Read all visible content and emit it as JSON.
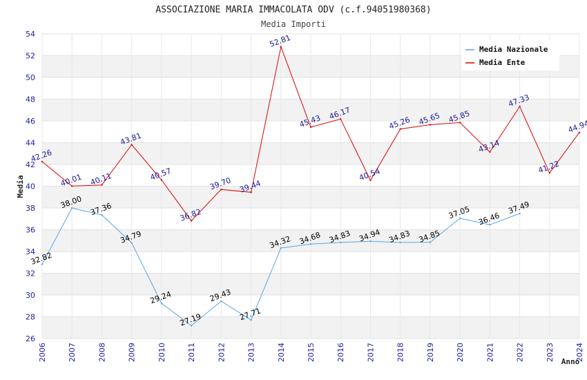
{
  "chart_data": {
    "type": "line",
    "title": "ASSOCIAZIONE MARIA IMMACOLATA ODV (c.f.94051980368)",
    "subtitle": "Media Importi",
    "xlabel": "Anno",
    "ylabel": "Media",
    "ylim": [
      26,
      54
    ],
    "yticks": [
      "26",
      "28",
      "30",
      "32",
      "34",
      "36",
      "38",
      "40",
      "42",
      "44",
      "46",
      "48",
      "50",
      "52",
      "54"
    ],
    "x": [
      "2006",
      "2007",
      "2008",
      "2009",
      "2010",
      "2011",
      "2012",
      "2013",
      "2014",
      "2015",
      "2016",
      "2017",
      "2018",
      "2019",
      "2020",
      "2021",
      "2022",
      "2023",
      "2024"
    ],
    "grid": "horizontal bands",
    "legend_position": "top-right",
    "series": [
      {
        "name": "Media Nazionale",
        "color": "#5aa5e6",
        "values": [
          32.82,
          38.0,
          37.36,
          34.79,
          29.24,
          27.19,
          29.43,
          27.71,
          34.32,
          34.68,
          34.83,
          34.94,
          34.83,
          34.85,
          37.05,
          36.46,
          37.49,
          null,
          null
        ],
        "labels": [
          "32.82",
          "38.00",
          "37.36",
          "34.79",
          "29.24",
          "27.19",
          "29.43",
          "27.71",
          "34.32",
          "34.68",
          "34.83",
          "34.94",
          "34.83",
          "34.85",
          "37.05",
          "36.46",
          "37.49",
          null,
          null
        ]
      },
      {
        "name": "Media Ente",
        "color": "#e00000",
        "values": [
          42.26,
          40.01,
          40.11,
          43.81,
          40.57,
          36.82,
          39.7,
          39.44,
          52.81,
          45.43,
          46.17,
          40.54,
          45.26,
          45.65,
          45.85,
          43.14,
          47.33,
          41.22,
          44.94
        ],
        "labels": [
          "42.26",
          "40.01",
          "40.11",
          "43.81",
          "40.57",
          "36.82",
          "39.70",
          "39.44",
          "52.81",
          "45.43",
          "46.17",
          "40.54",
          "45.26",
          "45.65",
          "45.85",
          "43.14",
          "47.33",
          "41.22",
          "44.94"
        ]
      }
    ]
  }
}
